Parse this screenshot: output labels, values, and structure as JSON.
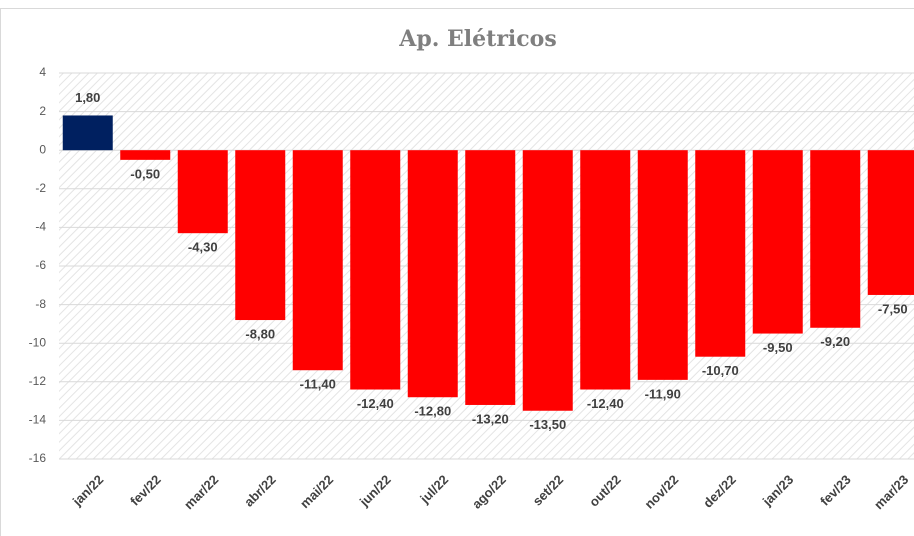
{
  "chart_data": {
    "type": "bar",
    "title": "Ap. Elétricos",
    "categories": [
      "jan/22",
      "fev/22",
      "mar/22",
      "abr/22",
      "mai/22",
      "jun/22",
      "jul/22",
      "ago/22",
      "set/22",
      "out/22",
      "nov/22",
      "dez/22",
      "jan/23",
      "fev/23",
      "mar/23"
    ],
    "values": [
      1.8,
      -0.5,
      -4.3,
      -8.8,
      -11.4,
      -12.4,
      -12.8,
      -13.2,
      -13.5,
      -12.4,
      -11.9,
      -10.7,
      -9.5,
      -9.2,
      -7.5
    ],
    "value_labels": [
      "1,80",
      "-0,50",
      "-4,30",
      "-8,80",
      "-11,40",
      "-12,40",
      "-12,80",
      "-13,20",
      "-13,50",
      "-12,40",
      "-11,90",
      "-10,70",
      "-9,50",
      "-9,20",
      "-7,50"
    ],
    "colors": [
      "#002060",
      "#ff0000",
      "#ff0000",
      "#ff0000",
      "#ff0000",
      "#ff0000",
      "#ff0000",
      "#ff0000",
      "#ff0000",
      "#ff0000",
      "#ff0000",
      "#ff0000",
      "#ff0000",
      "#ff0000",
      "#ff0000"
    ],
    "ylim": [
      -16,
      4
    ],
    "yticks": [
      4,
      2,
      0,
      -2,
      -4,
      -6,
      -8,
      -10,
      -12,
      -14,
      -16
    ],
    "grid": true
  }
}
